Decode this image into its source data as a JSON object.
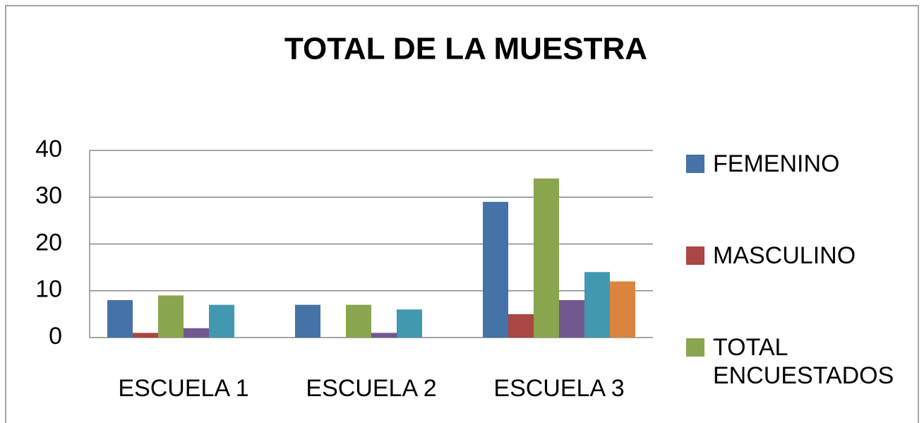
{
  "chart_data": {
    "type": "bar",
    "title": "TOTAL DE LA MUESTRA",
    "categories": [
      "ESCUELA 1",
      "ESCUELA 2",
      "ESCUELA 3"
    ],
    "series": [
      {
        "name": "FEMENINO",
        "color": "#4572a7",
        "values": [
          8,
          7,
          29
        ]
      },
      {
        "name": "MASCULINO",
        "color": "#aa4643",
        "values": [
          1,
          0,
          5
        ]
      },
      {
        "name": "TOTAL ENCUESTADOS",
        "color": "#89a54e",
        "values": [
          9,
          7,
          34
        ]
      },
      {
        "color": "#71588f",
        "values": [
          2,
          1,
          8
        ]
      },
      {
        "color": "#4198af",
        "values": [
          7,
          6,
          14
        ]
      },
      {
        "color": "#db843d",
        "values": [
          0,
          0,
          12
        ]
      }
    ],
    "ylim": [
      0,
      40
    ],
    "yticks": [
      0,
      10,
      20,
      30,
      40
    ],
    "grid": true
  }
}
